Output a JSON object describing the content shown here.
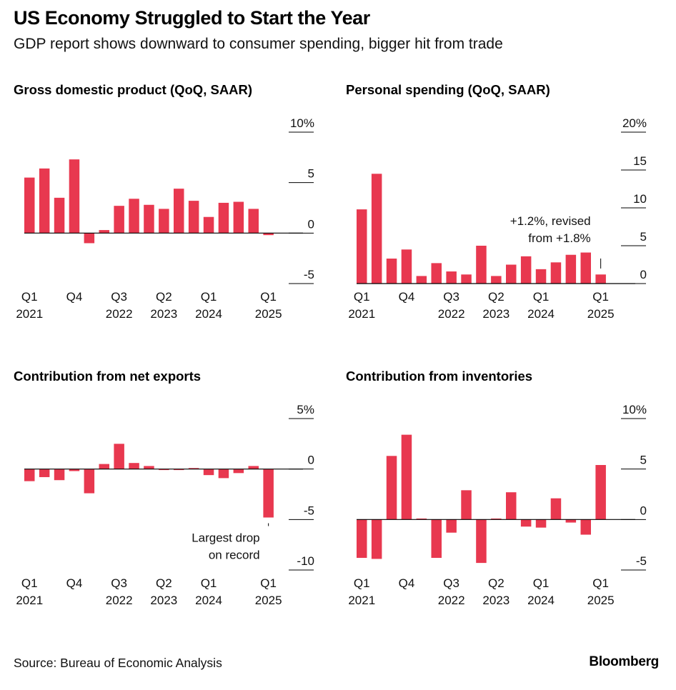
{
  "header": {
    "title": "US Economy Struggled to Start the Year",
    "subtitle": "GDP report shows downward to consumer spending, bigger hit from trade"
  },
  "footer": {
    "source": "Source: Bureau of Economic Analysis",
    "brand": "Bloomberg"
  },
  "colors": {
    "bar": "#e8384f",
    "axis": "#000000",
    "text": "#111111"
  },
  "chart_data": [
    {
      "id": "gdp",
      "type": "bar",
      "title": "Gross domestic product (QoQ, SAAR)",
      "categories": [
        "Q1 2021",
        "Q2 2021",
        "Q3 2021",
        "Q4 2021",
        "Q1 2022",
        "Q2 2022",
        "Q3 2022",
        "Q4 2022",
        "Q1 2023",
        "Q2 2023",
        "Q3 2023",
        "Q4 2023",
        "Q1 2024",
        "Q2 2024",
        "Q3 2024",
        "Q4 2024",
        "Q1 2025"
      ],
      "values": [
        5.5,
        6.4,
        3.5,
        7.3,
        -1.0,
        0.3,
        2.7,
        3.4,
        2.8,
        2.4,
        4.4,
        3.2,
        1.6,
        3.0,
        3.1,
        2.4,
        -0.2
      ],
      "ylim": [
        -5,
        10
      ],
      "yticks": [
        {
          "value": 10,
          "label": "10%"
        },
        {
          "value": 5,
          "label": "5"
        },
        {
          "value": 0,
          "label": "0"
        },
        {
          "value": -5,
          "label": "-5"
        }
      ],
      "xticks": [
        {
          "index": 0,
          "line1": "Q1",
          "line2": "2021"
        },
        {
          "index": 3,
          "line1": "Q4",
          "line2": ""
        },
        {
          "index": 6,
          "line1": "Q3",
          "line2": "2022"
        },
        {
          "index": 9,
          "line1": "Q2",
          "line2": "2023"
        },
        {
          "index": 12,
          "line1": "Q1",
          "line2": "2024"
        },
        {
          "index": 16,
          "line1": "Q1",
          "line2": "2025"
        }
      ],
      "annotations": []
    },
    {
      "id": "spending",
      "type": "bar",
      "title": "Personal spending (QoQ, SAAR)",
      "categories": [
        "Q1 2021",
        "Q2 2021",
        "Q3 2021",
        "Q4 2021",
        "Q1 2022",
        "Q2 2022",
        "Q3 2022",
        "Q4 2022",
        "Q1 2023",
        "Q2 2023",
        "Q3 2023",
        "Q4 2023",
        "Q1 2024",
        "Q2 2024",
        "Q3 2024",
        "Q4 2024",
        "Q1 2025"
      ],
      "values": [
        9.8,
        14.5,
        3.3,
        4.5,
        1.0,
        2.7,
        1.6,
        1.2,
        5.0,
        1.0,
        2.5,
        3.6,
        1.9,
        2.8,
        3.8,
        4.1,
        1.2
      ],
      "ylim": [
        0,
        20
      ],
      "yticks": [
        {
          "value": 20,
          "label": "20%"
        },
        {
          "value": 15,
          "label": "15"
        },
        {
          "value": 10,
          "label": "10"
        },
        {
          "value": 5,
          "label": "5"
        },
        {
          "value": 0,
          "label": "0"
        }
      ],
      "xticks": [
        {
          "index": 0,
          "line1": "Q1",
          "line2": "2021"
        },
        {
          "index": 3,
          "line1": "Q4",
          "line2": ""
        },
        {
          "index": 6,
          "line1": "Q3",
          "line2": "2022"
        },
        {
          "index": 9,
          "line1": "Q2",
          "line2": "2023"
        },
        {
          "index": 12,
          "line1": "Q1",
          "line2": "2024"
        },
        {
          "index": 16,
          "line1": "Q1",
          "line2": "2025"
        }
      ],
      "annotations": [
        {
          "index": 16,
          "lines": [
            "+1.2%, revised",
            "from +1.8%"
          ],
          "value": 1.8
        }
      ]
    },
    {
      "id": "net-exports",
      "type": "bar",
      "title": "Contribution from net exports",
      "categories": [
        "Q1 2021",
        "Q2 2021",
        "Q3 2021",
        "Q4 2021",
        "Q1 2022",
        "Q2 2022",
        "Q3 2022",
        "Q4 2022",
        "Q1 2023",
        "Q2 2023",
        "Q3 2023",
        "Q4 2023",
        "Q1 2024",
        "Q2 2024",
        "Q3 2024",
        "Q4 2024",
        "Q1 2025"
      ],
      "values": [
        -1.2,
        -0.8,
        -1.1,
        -0.2,
        -2.4,
        0.5,
        2.5,
        0.6,
        0.3,
        -0.1,
        -0.1,
        0.1,
        -0.6,
        -0.9,
        -0.4,
        0.3,
        -4.8
      ],
      "ylim": [
        -10,
        5
      ],
      "yticks": [
        {
          "value": 5,
          "label": "5%"
        },
        {
          "value": 0,
          "label": "0"
        },
        {
          "value": -5,
          "label": "-5"
        },
        {
          "value": -10,
          "label": "-10"
        }
      ],
      "xticks": [
        {
          "index": 0,
          "line1": "Q1",
          "line2": "2021"
        },
        {
          "index": 3,
          "line1": "Q4",
          "line2": ""
        },
        {
          "index": 6,
          "line1": "Q3",
          "line2": "2022"
        },
        {
          "index": 9,
          "line1": "Q2",
          "line2": "2023"
        },
        {
          "index": 12,
          "line1": "Q1",
          "line2": "2024"
        },
        {
          "index": 16,
          "line1": "Q1",
          "line2": "2025"
        }
      ],
      "annotations": [
        {
          "index": 16,
          "lines": [
            "Largest drop",
            "on record"
          ],
          "value": -4.8
        }
      ]
    },
    {
      "id": "inventories",
      "type": "bar",
      "title": "Contribution from inventories",
      "categories": [
        "Q1 2021",
        "Q2 2021",
        "Q3 2021",
        "Q4 2021",
        "Q1 2022",
        "Q2 2022",
        "Q3 2022",
        "Q4 2022",
        "Q1 2023",
        "Q2 2023",
        "Q3 2023",
        "Q4 2023",
        "Q1 2024",
        "Q2 2024",
        "Q3 2024",
        "Q4 2024",
        "Q1 2025"
      ],
      "values": [
        -3.8,
        -3.9,
        6.3,
        8.4,
        0.1,
        -3.8,
        -1.3,
        2.9,
        -4.3,
        0.1,
        2.7,
        -0.7,
        -0.8,
        2.1,
        -0.3,
        -1.5,
        5.4
      ],
      "ylim": [
        -5,
        10
      ],
      "yticks": [
        {
          "value": 10,
          "label": "10%"
        },
        {
          "value": 5,
          "label": "5"
        },
        {
          "value": 0,
          "label": "0"
        },
        {
          "value": -5,
          "label": "-5"
        }
      ],
      "xticks": [
        {
          "index": 0,
          "line1": "Q1",
          "line2": "2021"
        },
        {
          "index": 3,
          "line1": "Q4",
          "line2": ""
        },
        {
          "index": 6,
          "line1": "Q3",
          "line2": "2022"
        },
        {
          "index": 9,
          "line1": "Q2",
          "line2": "2023"
        },
        {
          "index": 12,
          "line1": "Q1",
          "line2": "2024"
        },
        {
          "index": 16,
          "line1": "Q1",
          "line2": "2025"
        }
      ],
      "annotations": []
    }
  ]
}
